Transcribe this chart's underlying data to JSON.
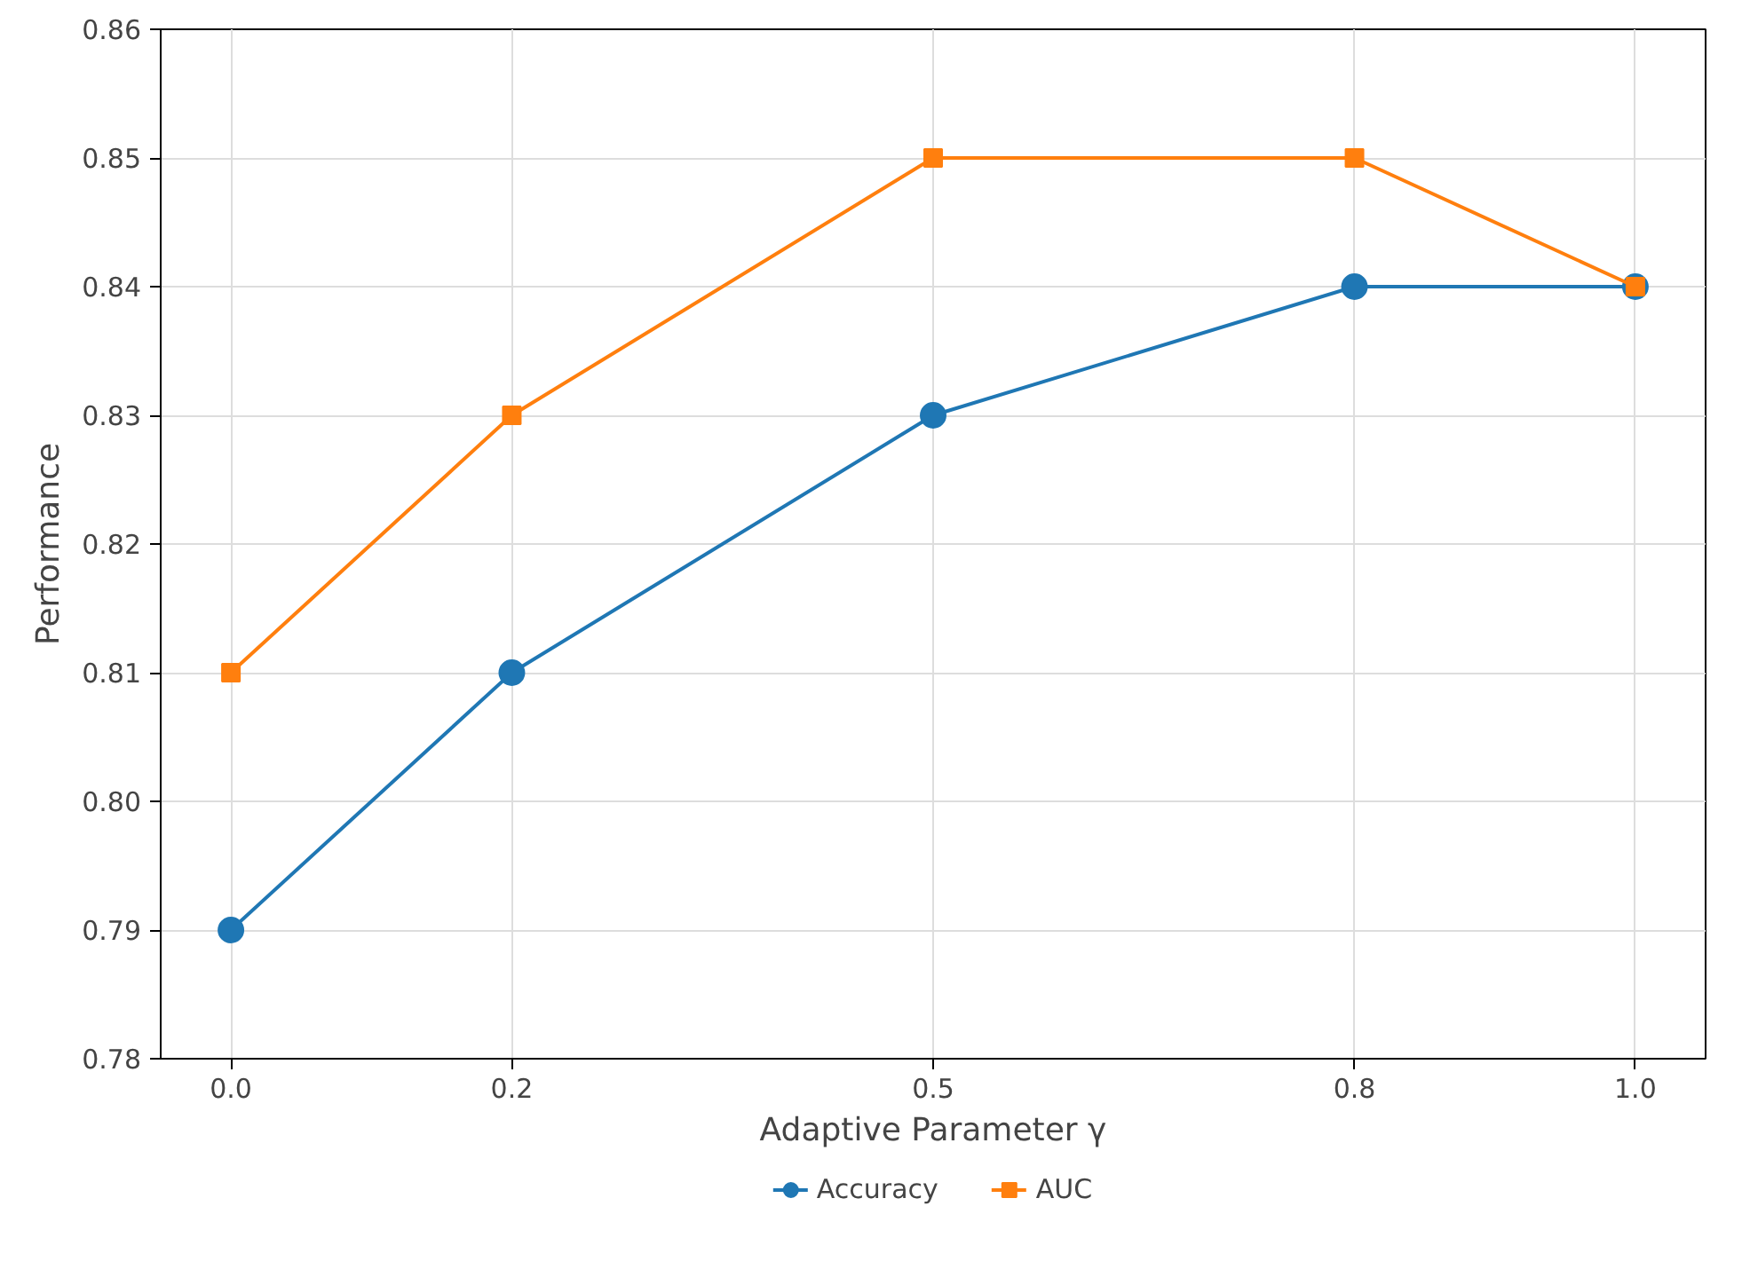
{
  "chart_data": {
    "type": "line",
    "xlabel": "Adaptive Parameter γ",
    "ylabel": "Performance",
    "x": [
      0.0,
      0.2,
      0.5,
      0.8,
      1.0
    ],
    "series": [
      {
        "name": "Accuracy",
        "color": "#1f77b4",
        "marker": "circle",
        "values": [
          0.79,
          0.81,
          0.83,
          0.84,
          0.84
        ]
      },
      {
        "name": "AUC",
        "color": "#ff7f0e",
        "marker": "square",
        "values": [
          0.81,
          0.83,
          0.85,
          0.85,
          0.84
        ]
      }
    ],
    "xlim": [
      -0.05,
      1.05
    ],
    "xticks": [
      {
        "value": 0.0,
        "label": "0.0"
      },
      {
        "value": 0.2,
        "label": "0.2"
      },
      {
        "value": 0.5,
        "label": "0.5"
      },
      {
        "value": 0.8,
        "label": "0.8"
      },
      {
        "value": 1.0,
        "label": "1.0"
      }
    ],
    "ylim": [
      0.78,
      0.86
    ],
    "yticks": [
      {
        "value": 0.78,
        "label": "0.78"
      },
      {
        "value": 0.79,
        "label": "0.79"
      },
      {
        "value": 0.8,
        "label": "0.80"
      },
      {
        "value": 0.81,
        "label": "0.81"
      },
      {
        "value": 0.82,
        "label": "0.82"
      },
      {
        "value": 0.83,
        "label": "0.83"
      },
      {
        "value": 0.84,
        "label": "0.84"
      },
      {
        "value": 0.85,
        "label": "0.85"
      },
      {
        "value": 0.86,
        "label": "0.86"
      }
    ],
    "grid": true,
    "legend": "bottom",
    "line_style": "solid"
  }
}
